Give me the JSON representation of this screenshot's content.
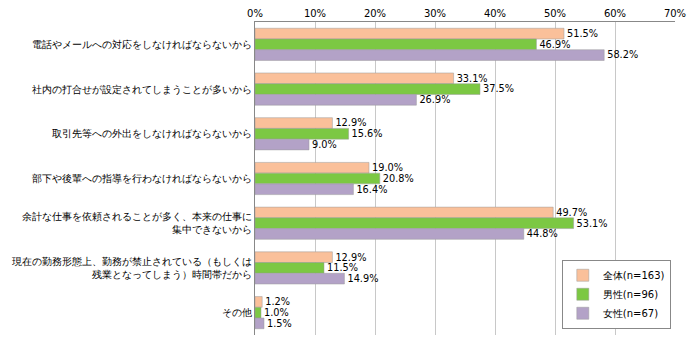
{
  "chart_data": {
    "type": "bar",
    "orientation": "horizontal",
    "categories": [
      "電話やメールへの対応をしなければならないから",
      "社内の打合せが設定されてしまうことが多いから",
      "取引先等への外出をしなければならないから",
      "部下や後輩への指導を行わなければならないから",
      "余計な仕事を依頼されることが多く、本来の仕事に\n集中できないから",
      "現在の勤務形態上、勤務が禁止されている（もしくは\n残業となってしまう）時間帯だから",
      "その他"
    ],
    "series": [
      {
        "name": "全体(n=163)",
        "color": "#fac09a",
        "values": [
          51.5,
          33.1,
          12.9,
          19.0,
          49.7,
          12.9,
          1.2
        ],
        "value_labels": [
          "51.5%",
          "33.1%",
          "12.9%",
          "19.0%",
          "49.7%",
          "12.9%",
          "1.2%"
        ]
      },
      {
        "name": "男性(n=96)",
        "color": "#7cc843",
        "values": [
          46.9,
          37.5,
          15.6,
          20.8,
          53.1,
          11.5,
          1.0
        ],
        "value_labels": [
          "46.9%",
          "37.5%",
          "15.6%",
          "20.8%",
          "53.1%",
          "11.5%",
          "1.0%"
        ]
      },
      {
        "name": "女性(n=67)",
        "color": "#b3a2c7",
        "values": [
          58.2,
          26.9,
          9.0,
          16.4,
          44.8,
          14.9,
          1.5
        ],
        "value_labels": [
          "58.2%",
          "26.9%",
          "9.0%",
          "16.4%",
          "44.8%",
          "14.9%",
          "1.5%"
        ]
      }
    ],
    "xlim": [
      0,
      70
    ],
    "xticks": [
      {
        "value": 0,
        "label": "0%"
      },
      {
        "value": 10,
        "label": "10%"
      },
      {
        "value": 20,
        "label": "20%"
      },
      {
        "value": 30,
        "label": "30%"
      },
      {
        "value": 40,
        "label": "40%"
      },
      {
        "value": 50,
        "label": "50%"
      },
      {
        "value": 60,
        "label": "60%"
      },
      {
        "value": 70,
        "label": "70%"
      }
    ],
    "grid": true,
    "legend": "bottom right",
    "data_labels": true
  }
}
